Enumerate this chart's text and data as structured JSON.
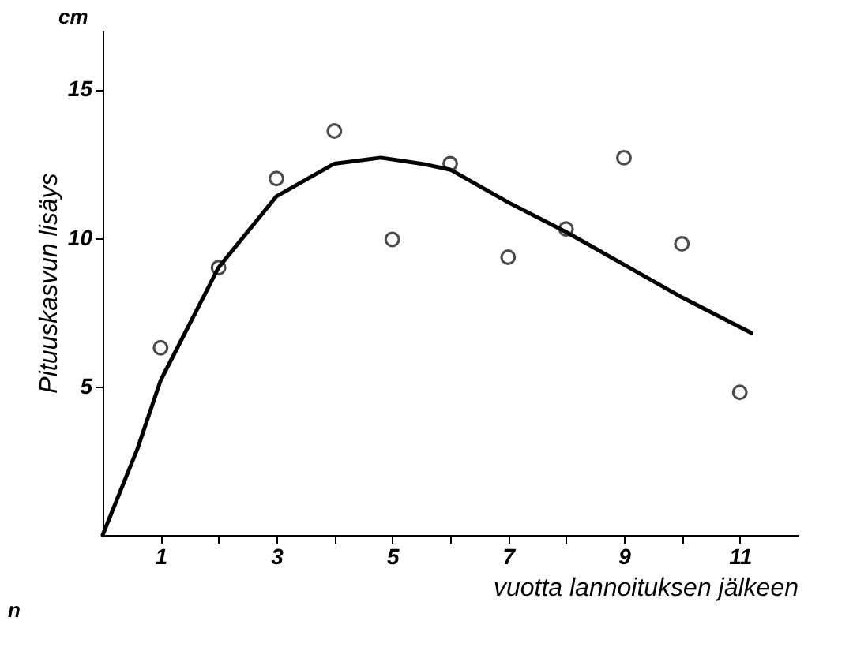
{
  "chart_data": {
    "type": "scatter",
    "xlabel": "vuotta lannoituksen jälkeen",
    "ylabel": "Pituuskasvun lisäys",
    "annotations": [
      "cm",
      "n"
    ],
    "series": [
      {
        "color": "#000000",
        "marker": "circle",
        "x": [
          1,
          2,
          3,
          4,
          5,
          6,
          7,
          8,
          9,
          10,
          11
        ],
        "values": [
          6.3,
          9.0,
          12.0,
          13.6,
          9.95,
          12.5,
          9.35,
          10.3,
          12.7,
          9.8,
          4.8
        ]
      },
      {
        "type": "line",
        "color": "#000000",
        "marker": "none",
        "line_style": "solid",
        "x": [
          0,
          0.6,
          1,
          2,
          3,
          4,
          4.8,
          5.5,
          6,
          7,
          8,
          9,
          10,
          11.2
        ],
        "values": [
          0,
          2.9,
          5.2,
          9.0,
          11.4,
          12.5,
          12.7,
          12.5,
          12.3,
          11.2,
          10.2,
          9.1,
          8.0,
          6.8
        ]
      }
    ],
    "xlim": [
      0,
      12
    ],
    "ylim": [
      0,
      17
    ],
    "xticks": [
      1,
      {
        "value": 2,
        "label": null
      },
      3,
      {
        "value": 4,
        "label": null
      },
      5,
      {
        "value": 6,
        "label": null
      },
      7,
      {
        "value": 8,
        "label": null
      },
      9,
      {
        "value": 10,
        "label": null
      },
      11
    ],
    "yticks": [
      5,
      10,
      15
    ]
  }
}
